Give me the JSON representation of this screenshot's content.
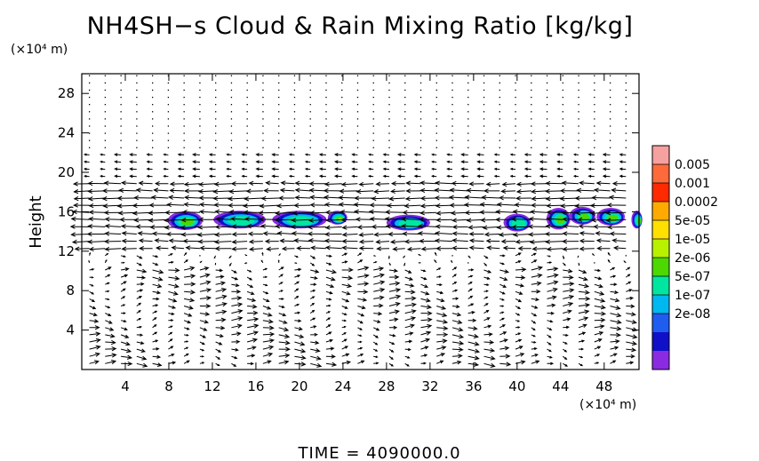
{
  "chart_data": {
    "type": "heatmap",
    "title": "NH4SH−s Cloud & Rain Mixing Ratio [kg/kg]",
    "xlabel": "",
    "xunit": "(×10⁴ m)",
    "ylabel": "Height",
    "yunit": "(×10⁴ m)",
    "xlim": [
      0,
      51.2
    ],
    "ylim": [
      0,
      30
    ],
    "xticks": [
      4,
      8,
      12,
      16,
      20,
      24,
      28,
      32,
      36,
      40,
      44,
      48
    ],
    "yticks": [
      4,
      8,
      12,
      16,
      20,
      24,
      28
    ],
    "colorbar": {
      "labels": [
        "0.005",
        "0.001",
        "0.0002",
        "5e-05",
        "1e-05",
        "2e-06",
        "5e-07",
        "1e-07",
        "2e-08"
      ],
      "colors": [
        "#f7a0a0",
        "#ff6a3a",
        "#ff2a00",
        "#ffaa00",
        "#ffe000",
        "#b8f000",
        "#4cd800",
        "#00e6a0",
        "#00b8f0",
        "#1f5cf0",
        "#1010c8",
        "#8a2be2"
      ]
    },
    "clouds": [
      {
        "x": 9.5,
        "y": 15.1,
        "w": 3.2,
        "h": 1.9,
        "level": 5
      },
      {
        "x": 14.5,
        "y": 15.2,
        "w": 4.8,
        "h": 1.8,
        "level": 4
      },
      {
        "x": 20.0,
        "y": 15.2,
        "w": 5.0,
        "h": 1.8,
        "level": 4
      },
      {
        "x": 23.5,
        "y": 15.4,
        "w": 1.8,
        "h": 1.4,
        "level": 6
      },
      {
        "x": 30.0,
        "y": 14.9,
        "w": 4.0,
        "h": 1.6,
        "level": 4
      },
      {
        "x": 40.0,
        "y": 14.9,
        "w": 2.5,
        "h": 1.8,
        "level": 4
      },
      {
        "x": 43.8,
        "y": 15.3,
        "w": 2.2,
        "h": 2.2,
        "level": 5
      },
      {
        "x": 46.0,
        "y": 15.6,
        "w": 2.4,
        "h": 1.8,
        "level": 5
      },
      {
        "x": 48.6,
        "y": 15.5,
        "w": 2.6,
        "h": 1.8,
        "level": 5
      },
      {
        "x": 51.0,
        "y": 15.2,
        "w": 1.0,
        "h": 1.8,
        "level": 5
      }
    ]
  },
  "footer": {
    "time": "TIME  =  4090000.0"
  }
}
